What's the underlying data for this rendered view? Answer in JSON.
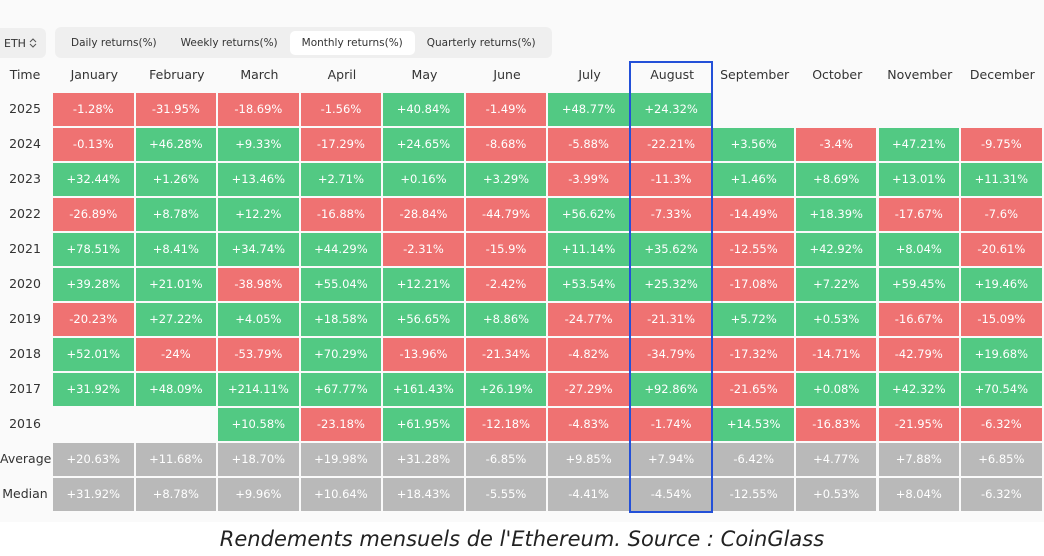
{
  "selector": "ETH",
  "tabs": [
    "Daily returns(%)",
    "Weekly returns(%)",
    "Monthly returns(%)",
    "Quarterly returns(%)"
  ],
  "colors": {
    "positive": "#52c983",
    "negative": "#ef7272",
    "summary": "#b9b9b9"
  },
  "table": {
    "header": [
      "Time",
      "January",
      "February",
      "March",
      "April",
      "May",
      "June",
      "July",
      "August",
      "September",
      "October",
      "November",
      "December"
    ],
    "rows": [
      {
        "label": "2025",
        "cells": [
          "-1.28%",
          "-31.95%",
          "-18.69%",
          "-1.56%",
          "+40.84%",
          "-1.49%",
          "+48.77%",
          "+24.32%",
          null,
          null,
          null,
          null
        ]
      },
      {
        "label": "2024",
        "cells": [
          "-0.13%",
          "+46.28%",
          "+9.33%",
          "-17.29%",
          "+24.65%",
          "-8.68%",
          "-5.88%",
          "-22.21%",
          "+3.56%",
          "-3.4%",
          "+47.21%",
          "-9.75%"
        ]
      },
      {
        "label": "2023",
        "cells": [
          "+32.44%",
          "+1.26%",
          "+13.46%",
          "+2.71%",
          "+0.16%",
          "+3.29%",
          "-3.99%",
          "-11.3%",
          "+1.46%",
          "+8.69%",
          "+13.01%",
          "+11.31%"
        ]
      },
      {
        "label": "2022",
        "cells": [
          "-26.89%",
          "+8.78%",
          "+12.2%",
          "-16.88%",
          "-28.84%",
          "-44.79%",
          "+56.62%",
          "-7.33%",
          "-14.49%",
          "+18.39%",
          "-17.67%",
          "-7.6%"
        ]
      },
      {
        "label": "2021",
        "cells": [
          "+78.51%",
          "+8.41%",
          "+34.74%",
          "+44.29%",
          "-2.31%",
          "-15.9%",
          "+11.14%",
          "+35.62%",
          "-12.55%",
          "+42.92%",
          "+8.04%",
          "-20.61%"
        ]
      },
      {
        "label": "2020",
        "cells": [
          "+39.28%",
          "+21.01%",
          "-38.98%",
          "+55.04%",
          "+12.21%",
          "-2.42%",
          "+53.54%",
          "+25.32%",
          "-17.08%",
          "+7.22%",
          "+59.45%",
          "+19.46%"
        ]
      },
      {
        "label": "2019",
        "cells": [
          "-20.23%",
          "+27.22%",
          "+4.05%",
          "+18.58%",
          "+56.65%",
          "+8.86%",
          "-24.77%",
          "-21.31%",
          "+5.72%",
          "+0.53%",
          "-16.67%",
          "-15.09%"
        ]
      },
      {
        "label": "2018",
        "cells": [
          "+52.01%",
          "-24%",
          "-53.79%",
          "+70.29%",
          "-13.96%",
          "-21.34%",
          "-4.82%",
          "-34.79%",
          "-17.32%",
          "-14.71%",
          "-42.79%",
          "+19.68%"
        ]
      },
      {
        "label": "2017",
        "cells": [
          "+31.92%",
          "+48.09%",
          "+214.11%",
          "+67.77%",
          "+161.43%",
          "+26.19%",
          "-27.29%",
          "+92.86%",
          "-21.65%",
          "+0.08%",
          "+42.32%",
          "+70.54%"
        ]
      },
      {
        "label": "2016",
        "cells": [
          null,
          null,
          "+10.58%",
          "-23.18%",
          "+61.95%",
          "-12.18%",
          "-4.83%",
          "-1.74%",
          "+14.53%",
          "-16.83%",
          "-21.95%",
          "-6.32%"
        ]
      }
    ],
    "summary_rows": [
      {
        "label": "Average",
        "cells": [
          "+20.63%",
          "+11.68%",
          "+18.70%",
          "+19.98%",
          "+31.28%",
          "-6.85%",
          "+9.85%",
          "+7.94%",
          "-6.42%",
          "+4.77%",
          "+7.88%",
          "+6.85%"
        ]
      },
      {
        "label": "Median",
        "cells": [
          "+31.92%",
          "+8.78%",
          "+9.96%",
          "+10.64%",
          "+18.43%",
          "-5.55%",
          "-4.41%",
          "-4.54%",
          "-12.55%",
          "+0.53%",
          "+8.04%",
          "-6.32%"
        ]
      }
    ]
  },
  "caption": "Rendements mensuels de l'Ethereum. Source : CoinGlass"
}
